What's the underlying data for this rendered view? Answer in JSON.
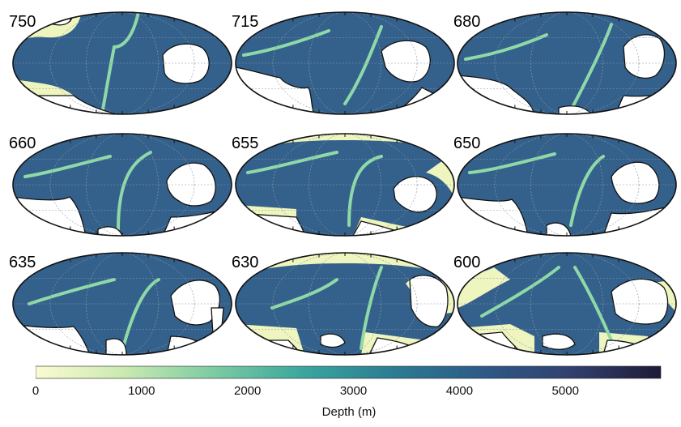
{
  "panels": [
    {
      "age": "750"
    },
    {
      "age": "715"
    },
    {
      "age": "680"
    },
    {
      "age": "660"
    },
    {
      "age": "655"
    },
    {
      "age": "650"
    },
    {
      "age": "635"
    },
    {
      "age": "630"
    },
    {
      "age": "600"
    }
  ],
  "colorbar": {
    "title": "Depth (m)",
    "ticks": [
      "0",
      "1000",
      "2000",
      "3000",
      "4000",
      "5000"
    ],
    "min": 0,
    "max": 5900,
    "colors": [
      "#fbfbd2",
      "#c9e9b0",
      "#7ccba2",
      "#3aa69d",
      "#2b7c93",
      "#2d5a87",
      "#32406f",
      "#1e1a37"
    ]
  },
  "colors": {
    "deep_ocean": "#34618b",
    "shelf": "#eef5be",
    "ridge": "#8fd9a8",
    "land": "#ffffff"
  }
}
